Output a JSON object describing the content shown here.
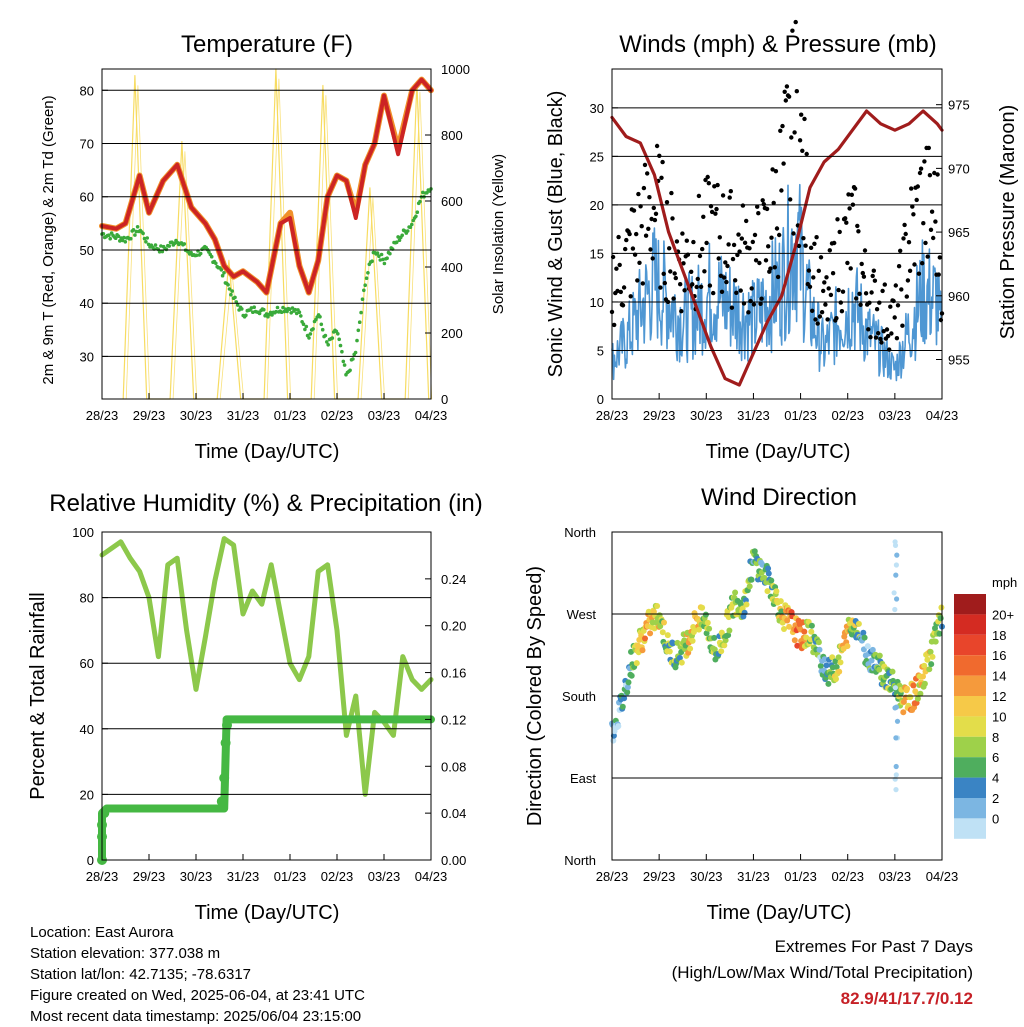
{
  "days": [
    "28/23",
    "29/23",
    "30/23",
    "31/23",
    "01/23",
    "02/23",
    "03/23",
    "04/23"
  ],
  "xlabel": "Time (Day/UTC)",
  "panels": {
    "temperature": {
      "title": "Temperature (F)",
      "ylabel_left": "2m & 9m T (Red, Orange) & 2m Td (Green)",
      "ylabel_right": "Solar Insolation (Yellow)",
      "left_ticks": [
        "30",
        "40",
        "50",
        "60",
        "70",
        "80"
      ],
      "right_ticks": [
        "0",
        "200",
        "400",
        "600",
        "800",
        "1000"
      ]
    },
    "winds": {
      "title": "Winds (mph) & Pressure (mb)",
      "ylabel_left": "Sonic Wind & Gust (Blue, Black)",
      "ylabel_right": "Station Pressure (Maroon)",
      "left_ticks": [
        "0",
        "5",
        "10",
        "15",
        "20",
        "25",
        "30"
      ],
      "right_ticks": [
        "955",
        "960",
        "965",
        "970",
        "975"
      ]
    },
    "humidity": {
      "title": "Relative Humidity (%) & Precipitation (in)",
      "ylabel_left": "Percent & Total Rainfall",
      "left_ticks": [
        "0",
        "20",
        "40",
        "60",
        "80",
        "100"
      ],
      "right_ticks": [
        "0.00",
        "0.04",
        "0.08",
        "0.12",
        "0.16",
        "0.20",
        "0.24"
      ]
    },
    "direction": {
      "title": "Wind Direction",
      "ylabel_left": "Direction (Colored By Speed)",
      "left_ticks": [
        "North",
        "East",
        "South",
        "West",
        "North"
      ],
      "legend_title": "mph",
      "legend_labels": [
        "20+",
        "18",
        "16",
        "14",
        "12",
        "10",
        "8",
        "6",
        "4",
        "2",
        "0"
      ],
      "legend_colors": [
        "#a01c1c",
        "#d42b22",
        "#e8452b",
        "#f06a2e",
        "#f59a3c",
        "#f6c948",
        "#e3dd4a",
        "#9ed14a",
        "#4fae5e",
        "#3a84c4",
        "#7cb6e2",
        "#bfe1f5"
      ]
    }
  },
  "info": {
    "location": "Location: East Aurora",
    "elevation": "Station elevation: 377.038 m",
    "latlon": "Station lat/lon: 42.7135; -78.6317",
    "created": "Figure created on Wed, 2025-06-04, at 23:41 UTC",
    "recent": "Most recent data timestamp: 2025/06/04 23:15:00"
  },
  "extremes": {
    "line1": "Extremes For Past 7 Days",
    "line2": "(High/Low/Max Wind/Total Precipitation)",
    "values": "82.9/41/17.7/0.12"
  },
  "colors": {
    "temp_2m": "#cc2424",
    "temp_9m": "#f0902a",
    "dewpoint": "#3aaa3a",
    "insolation": "#f7da5a",
    "wind": "#4f97d3",
    "gust": "#000000",
    "pressure": "#a01c1c",
    "rh": "#8cc84b",
    "precip": "#45b843"
  },
  "chart_data": [
    {
      "type": "line",
      "title": "Temperature (F)",
      "xlabel": "Time (Day/UTC)",
      "ylabel": "2m & 9m T (Red, Orange) & 2m Td (Green)",
      "ylabel_right": "Solar Insolation (Yellow)",
      "ylim": [
        22,
        84
      ],
      "ylim_right": [
        0,
        1000
      ],
      "x": [
        0,
        0.3,
        0.5,
        0.8,
        1.0,
        1.3,
        1.6,
        1.9,
        2.2,
        2.4,
        2.6,
        2.8,
        3.0,
        3.3,
        3.5,
        3.8,
        4.0,
        4.2,
        4.4,
        4.6,
        4.8,
        5.0,
        5.2,
        5.4,
        5.6,
        5.8,
        6.0,
        6.3,
        6.6,
        6.8,
        7.0
      ],
      "series": [
        {
          "name": "2m T",
          "values": [
            54.5,
            54,
            55,
            64,
            57,
            63,
            66,
            58,
            55,
            52,
            47,
            45,
            46,
            44,
            42,
            55,
            56,
            47,
            42,
            48,
            60,
            64,
            63,
            56,
            66,
            70,
            79,
            68,
            80,
            82,
            80
          ]
        },
        {
          "name": "9m T",
          "values": [
            54.5,
            54,
            55,
            64,
            57,
            63,
            66,
            58,
            55,
            52,
            47,
            45,
            46,
            44,
            42,
            55,
            57,
            47,
            42,
            48,
            60,
            64,
            63,
            57,
            66,
            70,
            79,
            69,
            80,
            82,
            80
          ]
        },
        {
          "name": "2m Td",
          "values": [
            53,
            52.5,
            52,
            54,
            51,
            50,
            52,
            49,
            50,
            48,
            45,
            41,
            38,
            39,
            38,
            39,
            39,
            38,
            34,
            38,
            32,
            35,
            26,
            31,
            44,
            50,
            48,
            52,
            55,
            60,
            62
          ]
        },
        {
          "name": "Solar Insolation",
          "x": [
            0.45,
            0.7,
            0.95,
            1.45,
            1.7,
            1.95,
            2.45,
            2.7,
            2.95,
            3.45,
            3.7,
            3.95,
            4.45,
            4.7,
            4.95,
            5.45,
            5.7,
            5.95,
            6.45,
            6.7,
            6.95
          ],
          "values": [
            0,
            980,
            0,
            0,
            780,
            0,
            0,
            420,
            0,
            0,
            1000,
            0,
            0,
            950,
            0,
            0,
            640,
            0,
            0,
            960,
            0
          ]
        }
      ]
    },
    {
      "type": "line",
      "title": "Winds (mph) & Pressure (mb)",
      "xlabel": "Time (Day/UTC)",
      "ylabel": "Sonic Wind & Gust (Blue, Black)",
      "ylabel_right": "Station Pressure (Maroon)",
      "ylim": [
        0,
        34
      ],
      "ylim_right": [
        951.9,
        977.8
      ],
      "x": [
        0,
        0.3,
        0.6,
        0.9,
        1.2,
        1.5,
        1.8,
        2.1,
        2.4,
        2.7,
        3.0,
        3.3,
        3.6,
        3.9,
        4.2,
        4.5,
        4.8,
        5.1,
        5.4,
        5.7,
        6.0,
        6.3,
        6.6,
        6.9,
        7.0
      ],
      "series": [
        {
          "name": "Sonic Wind",
          "values": [
            4,
            6,
            9,
            12,
            10,
            8,
            9,
            11,
            10,
            9,
            8,
            10,
            12,
            17,
            9,
            5,
            8,
            10,
            7,
            5,
            3,
            7,
            11,
            10,
            6
          ]
        },
        {
          "name": "Gust",
          "values": [
            12,
            14,
            17,
            20,
            16,
            14,
            15,
            17,
            16,
            15,
            14,
            16,
            22,
            29,
            16,
            9,
            14,
            17,
            11,
            9,
            8,
            16,
            20,
            18,
            12
          ]
        },
        {
          "name": "Station Pressure",
          "values": [
            974,
            972.5,
            972,
            969.5,
            965,
            962,
            959,
            956,
            953.5,
            953,
            955.5,
            958,
            960,
            964,
            968.5,
            970.5,
            971.5,
            973,
            974.5,
            973.5,
            973,
            973.5,
            974.5,
            973.5,
            973
          ]
        }
      ]
    },
    {
      "type": "line",
      "title": "Relative Humidity (%) & Precipitation (in)",
      "xlabel": "Time (Day/UTC)",
      "ylabel": "Percent & Total Rainfall",
      "ylim": [
        0,
        100
      ],
      "ylim_right": [
        0,
        0.28
      ],
      "x": [
        0,
        0.2,
        0.4,
        0.6,
        0.8,
        1.0,
        1.2,
        1.4,
        1.6,
        1.8,
        2.0,
        2.2,
        2.4,
        2.6,
        2.8,
        3.0,
        3.2,
        3.4,
        3.6,
        3.8,
        4.0,
        4.2,
        4.4,
        4.6,
        4.8,
        5.0,
        5.2,
        5.4,
        5.6,
        5.8,
        6.0,
        6.2,
        6.4,
        6.6,
        6.8,
        7.0
      ],
      "series": [
        {
          "name": "Relative Humidity",
          "values": [
            93,
            95,
            97,
            92,
            88,
            80,
            62,
            90,
            92,
            70,
            52,
            68,
            85,
            98,
            96,
            75,
            82,
            78,
            90,
            75,
            60,
            55,
            62,
            88,
            90,
            70,
            38,
            50,
            20,
            45,
            42,
            38,
            62,
            55,
            52,
            55
          ]
        },
        {
          "name": "Total Precipitation",
          "values": [
            0,
            0.04,
            0.044,
            0.044,
            0.044,
            0.044,
            0.044,
            0.044,
            0.044,
            0.044,
            0.044,
            0.044,
            0.044,
            0.044,
            0.12,
            0.12,
            0.12,
            0.12,
            0.12,
            0.12,
            0.12,
            0.12,
            0.12,
            0.12,
            0.12,
            0.12,
            0.12,
            0.12,
            0.12,
            0.12,
            0.12,
            0.12,
            0.12,
            0.12,
            0.12,
            0.12
          ]
        }
      ]
    },
    {
      "type": "scatter",
      "title": "Wind Direction",
      "xlabel": "Time (Day/UTC)",
      "ylabel": "Direction (Colored By Speed)",
      "y_categories": [
        "North",
        "East",
        "South",
        "West",
        "North"
      ],
      "colorbar_label": "mph",
      "x": [
        0.0,
        0.2,
        0.4,
        0.6,
        0.8,
        1.0,
        1.2,
        1.4,
        1.6,
        1.8,
        2.0,
        2.2,
        2.4,
        2.6,
        2.8,
        3.0,
        3.2,
        3.4,
        3.6,
        3.8,
        4.0,
        4.2,
        4.4,
        4.6,
        4.8,
        5.0,
        5.2,
        5.4,
        5.6,
        5.8,
        6.0,
        6.2,
        6.4,
        6.6,
        6.8,
        7.0
      ],
      "y_degrees": [
        140,
        170,
        215,
        240,
        260,
        270,
        230,
        225,
        240,
        265,
        260,
        225,
        250,
        285,
        280,
        330,
        315,
        300,
        270,
        260,
        245,
        250,
        225,
        205,
        215,
        250,
        260,
        225,
        220,
        200,
        190,
        175,
        180,
        200,
        235,
        265
      ],
      "speed_mph": [
        3,
        4,
        6,
        12,
        14,
        11,
        8,
        7,
        12,
        13,
        9,
        7,
        10,
        9,
        8,
        6,
        7,
        8,
        11,
        16,
        17,
        10,
        5,
        6,
        12,
        13,
        8,
        4,
        6,
        9,
        5,
        13,
        14,
        12,
        10,
        9
      ]
    }
  ]
}
